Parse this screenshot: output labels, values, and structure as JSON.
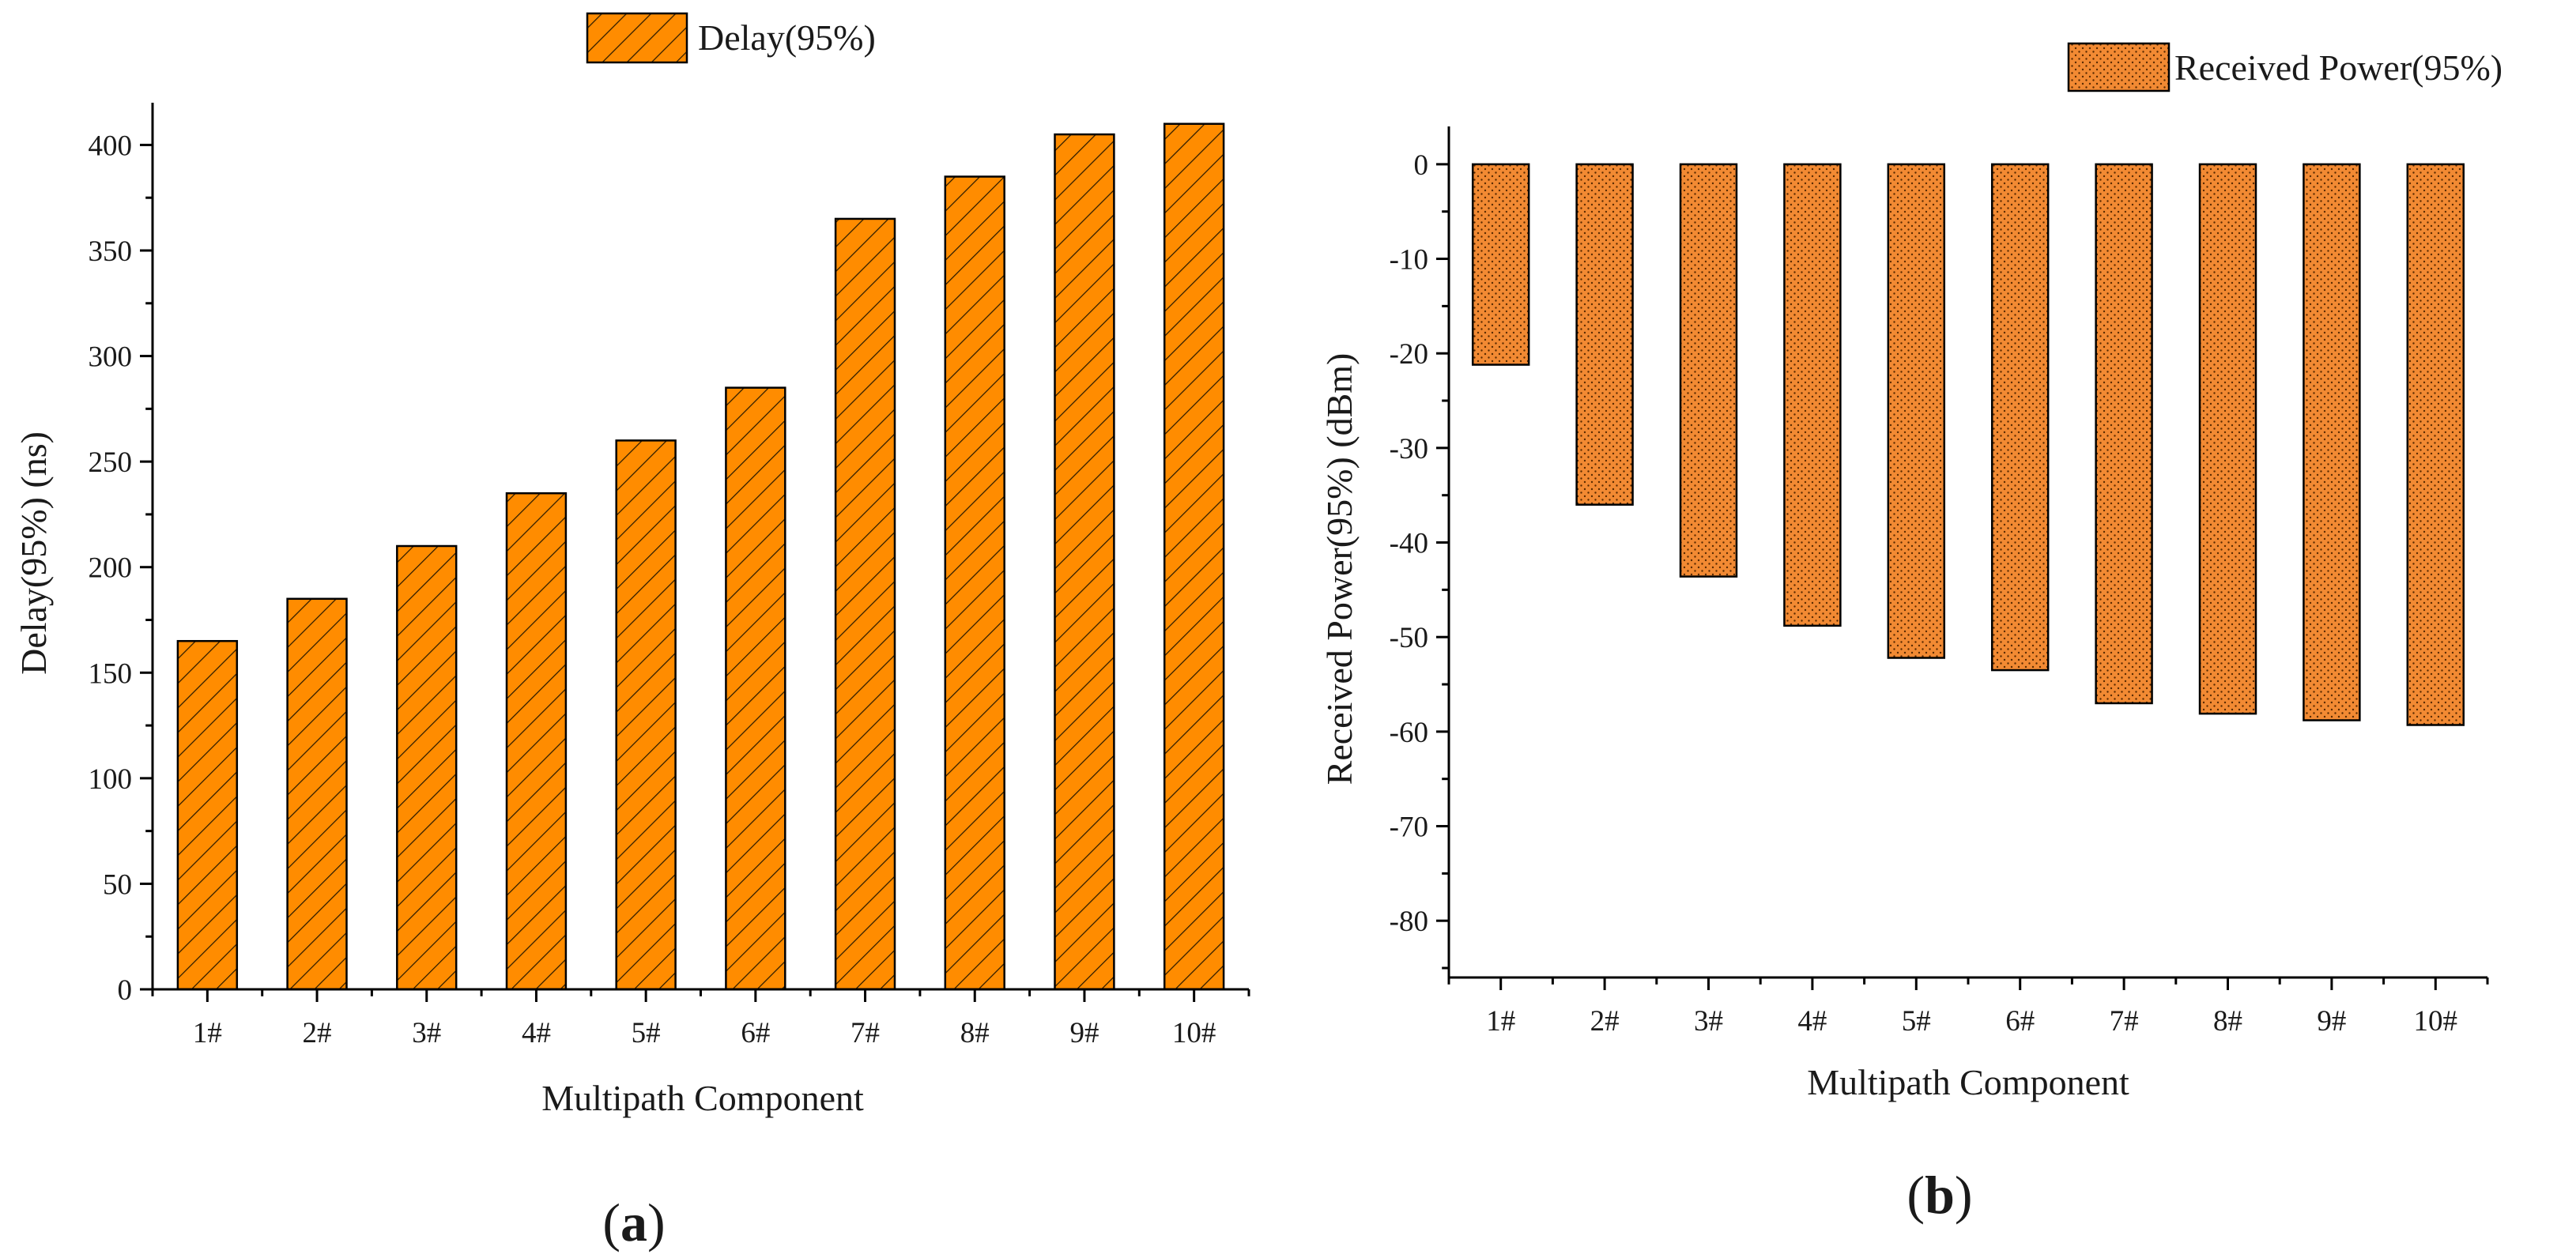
{
  "chart_data": [
    {
      "type": "bar",
      "panel": "(a)",
      "panel_letter": "a",
      "legend_label": "Delay(95%)",
      "legend_position": "top-center",
      "pattern": "diagonal-hatch",
      "bar_color": "#ff8c00",
      "xlabel": "Multipath Component",
      "ylabel": "Delay(95%) (ns)",
      "categories": [
        "1#",
        "2#",
        "3#",
        "4#",
        "5#",
        "6#",
        "7#",
        "8#",
        "9#",
        "10#"
      ],
      "values": [
        165,
        185,
        210,
        235,
        260,
        285,
        365,
        385,
        405,
        410
      ],
      "ylim": [
        0,
        420
      ],
      "yticks": [
        0,
        50,
        100,
        150,
        200,
        250,
        300,
        350,
        400
      ],
      "grid": false
    },
    {
      "type": "bar",
      "panel": "(b)",
      "panel_letter": "b",
      "legend_label": "Received Power(95%)",
      "legend_position": "top-right",
      "pattern": "dots",
      "bar_color": "#f28a33",
      "xlabel": "Multipath Component",
      "ylabel": "Received Power(95%) (dBm)",
      "categories": [
        "1#",
        "2#",
        "3#",
        "4#",
        "5#",
        "6#",
        "7#",
        "8#",
        "9#",
        "10#"
      ],
      "values": [
        -21.2,
        -36,
        -43.6,
        -48.8,
        -52.2,
        -53.5,
        -57,
        -58.1,
        -58.8,
        -59.3
      ],
      "ylim": [
        -86,
        4
      ],
      "yticks": [
        0,
        -10,
        -20,
        -30,
        -40,
        -50,
        -60,
        -70,
        -80
      ],
      "grid": false
    }
  ]
}
